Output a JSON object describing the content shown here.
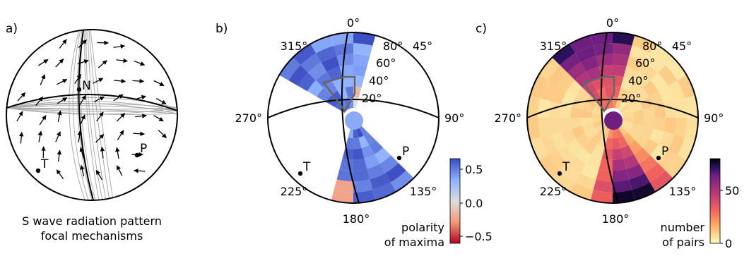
{
  "panels": [
    {
      "label": "a)",
      "caption_lines": [
        "S wave radiation pattern",
        "focal mechanisms"
      ],
      "points": [
        {
          "label": "N"
        },
        {
          "label": "T"
        },
        {
          "label": "P"
        }
      ]
    },
    {
      "label": "b)",
      "azimuth_labels": [
        "0°",
        "45°",
        "90°",
        "135°",
        "180°",
        "225°",
        "270°",
        "315°"
      ],
      "dip_labels": [
        "80°",
        "60°",
        "40°",
        "20°"
      ],
      "points": [
        {
          "label": "T"
        },
        {
          "label": "P"
        }
      ],
      "colorbar": {
        "title_lines": [
          "polarity",
          "of maxima"
        ],
        "ticks": [
          "0.5",
          "0.0",
          "−0.5"
        ]
      }
    },
    {
      "label": "c)",
      "azimuth_labels": [
        "0°",
        "45°",
        "90°",
        "135°",
        "180°",
        "225°",
        "270°",
        "315°"
      ],
      "dip_labels": [
        "80°",
        "60°",
        "40°",
        "20°"
      ],
      "points": [
        {
          "label": "T"
        },
        {
          "label": "P"
        }
      ],
      "colorbar": {
        "title_lines": [
          "number",
          "of pairs"
        ],
        "ticks": [
          "50",
          "0"
        ]
      }
    }
  ],
  "chart_data": [
    {
      "type": "other",
      "title": "S wave radiation pattern focal mechanisms",
      "description_labels": [
        "N",
        "T",
        "P"
      ]
    },
    {
      "type": "heatmap",
      "projection": "polar",
      "colorbar": {
        "label": "polarity of maxima",
        "range": [
          -0.7,
          0.7
        ],
        "ticks": [
          0.5,
          0.0,
          -0.5
        ],
        "colormap": "coolwarm_r"
      },
      "azimuth_ticks": [
        "0°",
        "45°",
        "90°",
        "135°",
        "180°",
        "225°",
        "270°",
        "315°"
      ],
      "dip_ticks": [
        "80°",
        "60°",
        "40°",
        "20°"
      ]
    },
    {
      "type": "heatmap",
      "projection": "polar",
      "colorbar": {
        "label": "number of pairs",
        "range": [
          0,
          70
        ],
        "ticks": [
          50,
          0
        ],
        "colormap": "magma_r"
      },
      "azimuth_ticks": [
        "0°",
        "45°",
        "90°",
        "135°",
        "180°",
        "225°",
        "270°",
        "315°"
      ],
      "dip_ticks": [
        "80°",
        "60°",
        "40°",
        "20°"
      ]
    }
  ],
  "colors": {
    "polarity_pos": "#3b5cd6",
    "polarity_neg": "#c4141c",
    "count_high": "#000004",
    "count_low": "#fcfdbf"
  }
}
